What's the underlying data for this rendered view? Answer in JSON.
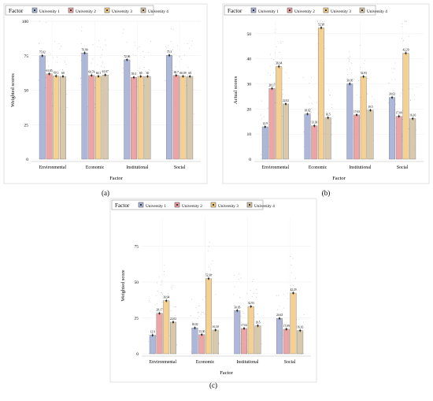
{
  "legend_title": "Factor",
  "series_colors": [
    "#a9b4d9",
    "#eaa1a3",
    "#f4cf8e",
    "#d6c7a8"
  ],
  "chart_data": [
    {
      "type": "bar",
      "panel_label": "(a)",
      "legend": [
        "University 1",
        "University 2",
        "University 3",
        "University 4"
      ],
      "categories": [
        "Environmental",
        "Economic",
        "Institutional",
        "Social"
      ],
      "xlabel": "Factor",
      "ylabel": "Weighted scores",
      "ylim": [
        0,
        100
      ],
      "yticks": [
        0,
        25,
        50,
        75,
        100
      ],
      "series": [
        {
          "name": "University 1",
          "values": [
            75.02,
            76.99,
            72.06,
            75.3
          ]
        },
        {
          "name": "University 2",
          "values": [
            61.85,
            60.74,
            59.3,
            60.7
          ]
        },
        {
          "name": "University 3",
          "values": [
            60.3,
            60.1,
            60,
            60.09
          ]
        },
        {
          "name": "University 4",
          "values": [
            60.0,
            61.07,
            60.0,
            60.0
          ]
        }
      ],
      "value_labels": [
        [
          "75.02",
          "61.85",
          "60.3",
          "60"
        ],
        [
          "76.99",
          "60.74",
          "60.1",
          "61.07"
        ],
        [
          "72.06",
          "59.3",
          "60",
          "60"
        ],
        [
          "75.3",
          "60.7",
          "60.09",
          "60"
        ]
      ],
      "grid": true
    },
    {
      "type": "bar",
      "panel_label": "(b)",
      "legend": [
        "University 1",
        "University 2",
        "University 3",
        "University 4"
      ],
      "categories": [
        "Environmental",
        "Economic",
        "Institutional",
        "Social"
      ],
      "xlabel": "Factor",
      "ylabel": "Actual scores",
      "ylim": [
        0,
        55
      ],
      "yticks": [
        0,
        10,
        20,
        30,
        40,
        50
      ],
      "series": [
        {
          "name": "University 1",
          "values": [
            12.9,
            18.02,
            30.05,
            24.62
          ]
        },
        {
          "name": "University 2",
          "values": [
            28.17,
            13.3,
            17.63,
            17.09
          ]
        },
        {
          "name": "University 3",
          "values": [
            36.94,
            52.38,
            32.93,
            42.29
          ]
        },
        {
          "name": "University 4",
          "values": [
            22.02,
            16.5,
            19.5,
            16.16
          ]
        }
      ],
      "value_labels": [
        [
          "12.9",
          "28.17",
          "36.94",
          "22.02"
        ],
        [
          "18.02",
          "13.30",
          "52.38",
          "16.5"
        ],
        [
          "30.05",
          "17.63",
          "32.93",
          "19.5"
        ],
        [
          "24.62",
          "17.09",
          "42.29",
          "16.16"
        ]
      ],
      "grid": true
    },
    {
      "type": "bar",
      "panel_label": "(c)",
      "legend": [
        "University 1",
        "University 2",
        "University 3",
        "University 4"
      ],
      "categories": [
        "Environmental",
        "Economic",
        "Institutional",
        "Social"
      ],
      "xlabel": "Factor",
      "ylabel": "Weighted score",
      "ylim": [
        0,
        95
      ],
      "yticks": [
        0,
        25,
        50,
        75
      ],
      "series": [
        {
          "name": "University 1",
          "values": [
            12.9,
            18.02,
            30.05,
            24.62
          ]
        },
        {
          "name": "University 2",
          "values": [
            28.17,
            13.3,
            17.63,
            17.09
          ]
        },
        {
          "name": "University 3",
          "values": [
            36.94,
            52.38,
            32.93,
            42.29
          ]
        },
        {
          "name": "University 4",
          "values": [
            22.02,
            16.5,
            19.5,
            16.16
          ]
        }
      ],
      "value_labels": [
        [
          "12.9",
          "28.17",
          "36.94",
          "22.02"
        ],
        [
          "18.02",
          "13.30",
          "52.38",
          "16.50"
        ],
        [
          "30.05",
          "17.63",
          "32.93",
          "19.5"
        ],
        [
          "24.62",
          "17.09",
          "42.29",
          "16.16"
        ]
      ],
      "grid": true
    }
  ]
}
